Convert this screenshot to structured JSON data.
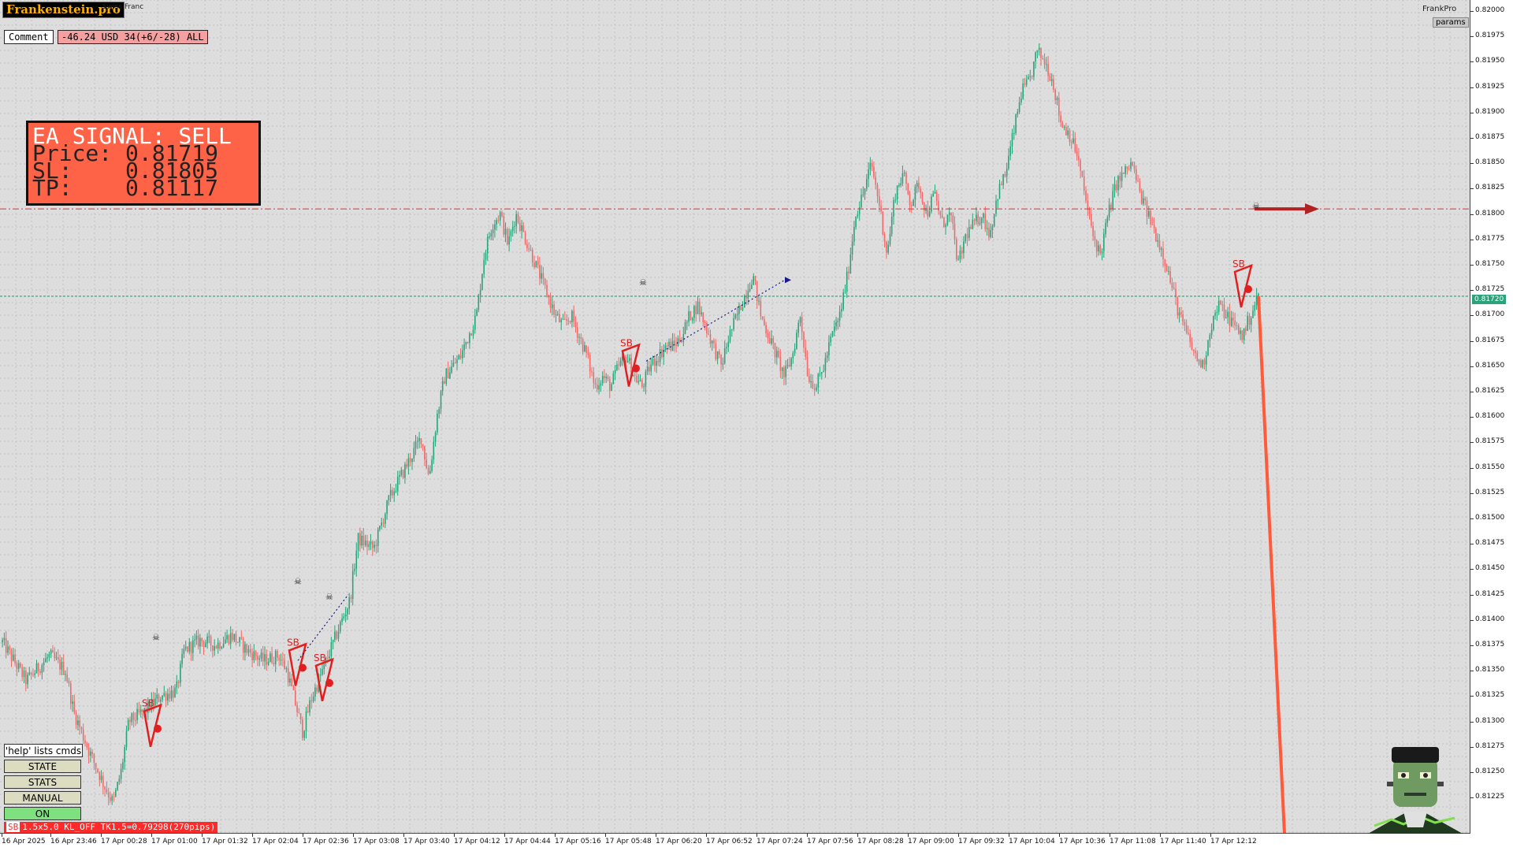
{
  "header": {
    "logo_text": "Frankenstein.pro",
    "symbol_text": "Swiss Franc",
    "brand_right": "FrankPro",
    "params_button": "params"
  },
  "comment": {
    "label": "Comment",
    "value": "-46.24 USD 34(+6/-28) ALL"
  },
  "signal_box": {
    "line1": "EA SIGNAL: SELL",
    "line2": "Price: 0.81719",
    "line3": "SL:    0.81805",
    "line4": "TP:    0.81117"
  },
  "controls": {
    "help": "'help' lists cmds",
    "state": "STATE",
    "stats": "STATS",
    "manual": "MANUAL",
    "on": "ON"
  },
  "status_bar": {
    "badge": "SB",
    "text": "1.5x5.0 KL_OFF TK1.5=0.79298(270pips)"
  },
  "current_price_label": "0.81720",
  "colors": {
    "up_candle": "#2aa37a",
    "down_candle": "#ef6a6a",
    "sl_line": "#e03030",
    "entry_line": "#2aa37a",
    "signal_box_bg": "#ff6347",
    "signal_arrow": "#ff5a3c"
  },
  "chart_data": {
    "type": "candlestick",
    "symbol": "Swiss Franc",
    "ylim": [
      0.812,
      0.82
    ],
    "y_ticks": [
      "0.82000",
      "0.81975",
      "0.81950",
      "0.81925",
      "0.81900",
      "0.81875",
      "0.81850",
      "0.81825",
      "0.81800",
      "0.81775",
      "0.81750",
      "0.81725",
      "0.81700",
      "0.81675",
      "0.81650",
      "0.81625",
      "0.81600",
      "0.81575",
      "0.81550",
      "0.81525",
      "0.81500",
      "0.81475",
      "0.81450",
      "0.81425",
      "0.81400",
      "0.81375",
      "0.81350",
      "0.81325",
      "0.81300",
      "0.81275",
      "0.81250",
      "0.81225"
    ],
    "x_ticks": [
      "16 Apr 2025",
      "16 Apr 23:46",
      "17 Apr 00:28",
      "17 Apr 01:00",
      "17 Apr 01:32",
      "17 Apr 02:04",
      "17 Apr 02:36",
      "17 Apr 03:08",
      "17 Apr 03:40",
      "17 Apr 04:12",
      "17 Apr 04:44",
      "17 Apr 05:16",
      "17 Apr 05:48",
      "17 Apr 06:20",
      "17 Apr 06:52",
      "17 Apr 07:24",
      "17 Apr 07:56",
      "17 Apr 08:28",
      "17 Apr 09:00",
      "17 Apr 09:32",
      "17 Apr 10:04",
      "17 Apr 10:36",
      "17 Apr 11:08",
      "17 Apr 11:40",
      "17 Apr 12:12"
    ],
    "close_path": [
      [
        0,
        0.81378
      ],
      [
        3,
        0.8134
      ],
      [
        6,
        0.81365
      ],
      [
        8,
        0.8135
      ],
      [
        9,
        0.8131
      ],
      [
        11,
        0.8127
      ],
      [
        13,
        0.81235
      ],
      [
        14,
        0.8122
      ],
      [
        15,
        0.8125
      ],
      [
        16,
        0.813
      ],
      [
        18,
        0.8131
      ],
      [
        20,
        0.81325
      ],
      [
        22,
        0.8133
      ],
      [
        23,
        0.8137
      ],
      [
        25,
        0.8138
      ],
      [
        27,
        0.81375
      ],
      [
        29,
        0.81385
      ],
      [
        31,
        0.8137
      ],
      [
        33,
        0.8136
      ],
      [
        35,
        0.81365
      ],
      [
        36,
        0.8135
      ],
      [
        37,
        0.8132
      ],
      [
        38,
        0.8129
      ],
      [
        39,
        0.8132
      ],
      [
        41,
        0.8136
      ],
      [
        43,
        0.814
      ],
      [
        44,
        0.8142
      ],
      [
        45,
        0.8148
      ],
      [
        47,
        0.8147
      ],
      [
        49,
        0.8152
      ],
      [
        51,
        0.8155
      ],
      [
        53,
        0.8158
      ],
      [
        54,
        0.8154
      ],
      [
        55,
        0.816
      ],
      [
        56,
        0.8164
      ],
      [
        58,
        0.8166
      ],
      [
        59,
        0.8168
      ],
      [
        60,
        0.817
      ],
      [
        61,
        0.8176
      ],
      [
        62,
        0.8179
      ],
      [
        63,
        0.818
      ],
      [
        64,
        0.8177
      ],
      [
        65,
        0.818
      ],
      [
        66,
        0.8178
      ],
      [
        67,
        0.8176
      ],
      [
        68,
        0.8174
      ],
      [
        69,
        0.8172
      ],
      [
        70,
        0.817
      ],
      [
        71,
        0.8169
      ],
      [
        72,
        0.817
      ],
      [
        73,
        0.8168
      ],
      [
        74,
        0.8166
      ],
      [
        75,
        0.8163
      ],
      [
        76,
        0.8164
      ],
      [
        77,
        0.8163
      ],
      [
        78,
        0.8165
      ],
      [
        79,
        0.8166
      ],
      [
        80,
        0.8164
      ],
      [
        81,
        0.8163
      ],
      [
        82,
        0.8165
      ],
      [
        83,
        0.8166
      ],
      [
        84,
        0.8167
      ],
      [
        85,
        0.8167
      ],
      [
        86,
        0.8168
      ],
      [
        87,
        0.817
      ],
      [
        88,
        0.8171
      ],
      [
        89,
        0.8169
      ],
      [
        90,
        0.8167
      ],
      [
        91,
        0.8165
      ],
      [
        92,
        0.8168
      ],
      [
        93,
        0.817
      ],
      [
        94,
        0.8172
      ],
      [
        95,
        0.8174
      ],
      [
        96,
        0.817
      ],
      [
        97,
        0.8168
      ],
      [
        98,
        0.8166
      ],
      [
        99,
        0.8164
      ],
      [
        100,
        0.8166
      ],
      [
        101,
        0.817
      ],
      [
        102,
        0.8164
      ],
      [
        103,
        0.8163
      ],
      [
        104,
        0.8165
      ],
      [
        105,
        0.8168
      ],
      [
        106,
        0.817
      ],
      [
        107,
        0.8174
      ],
      [
        108,
        0.818
      ],
      [
        109,
        0.8182
      ],
      [
        110,
        0.8185
      ],
      [
        111,
        0.8181
      ],
      [
        112,
        0.8176
      ],
      [
        113,
        0.8182
      ],
      [
        114,
        0.8184
      ],
      [
        115,
        0.8181
      ],
      [
        116,
        0.8183
      ],
      [
        117,
        0.818
      ],
      [
        118,
        0.8182
      ],
      [
        119,
        0.8179
      ],
      [
        120,
        0.818
      ],
      [
        121,
        0.8175
      ],
      [
        122,
        0.8178
      ],
      [
        123,
        0.8179
      ],
      [
        124,
        0.818
      ],
      [
        125,
        0.8178
      ],
      [
        126,
        0.8182
      ],
      [
        127,
        0.8184
      ],
      [
        128,
        0.8188
      ],
      [
        129,
        0.8192
      ],
      [
        130,
        0.8193
      ],
      [
        131,
        0.8196
      ],
      [
        132,
        0.8195
      ],
      [
        133,
        0.8193
      ],
      [
        134,
        0.8189
      ],
      [
        135,
        0.8188
      ],
      [
        136,
        0.8186
      ],
      [
        137,
        0.8182
      ],
      [
        138,
        0.8178
      ],
      [
        139,
        0.8176
      ],
      [
        140,
        0.818
      ],
      [
        141,
        0.8183
      ],
      [
        142,
        0.8184
      ],
      [
        143,
        0.8185
      ],
      [
        144,
        0.8182
      ],
      [
        145,
        0.818
      ],
      [
        146,
        0.8178
      ],
      [
        147,
        0.8176
      ],
      [
        148,
        0.8173
      ],
      [
        149,
        0.817
      ],
      [
        150,
        0.8168
      ],
      [
        151,
        0.8166
      ],
      [
        152,
        0.8165
      ],
      [
        153,
        0.8169
      ],
      [
        154,
        0.8171
      ],
      [
        155,
        0.817
      ],
      [
        156,
        0.8169
      ],
      [
        157,
        0.8168
      ],
      [
        158,
        0.817
      ],
      [
        159,
        0.8172
      ]
    ],
    "entry_price": 0.81719,
    "stop_loss": 0.81805,
    "take_profit": 0.81117,
    "signal": "SELL",
    "marker_label": "SB"
  }
}
